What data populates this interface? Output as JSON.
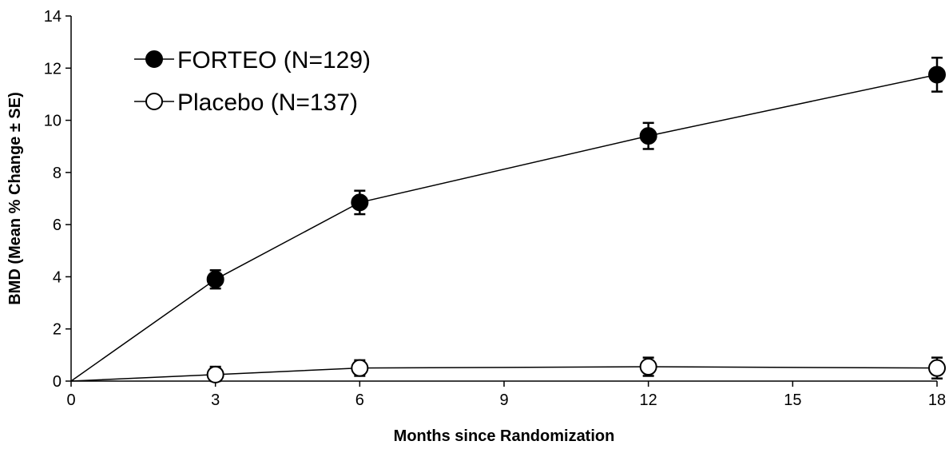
{
  "chart_data": {
    "type": "line",
    "title": "",
    "xlabel": "Months since Randomization",
    "ylabel": "BMD (Mean % Change ± SE)",
    "xlim": [
      0,
      18
    ],
    "ylim": [
      0,
      14
    ],
    "xticks": [
      0,
      3,
      6,
      9,
      12,
      15,
      18
    ],
    "yticks": [
      0,
      2,
      4,
      6,
      8,
      10,
      12,
      14
    ],
    "grid": false,
    "legend_position": "top-left",
    "series": [
      {
        "name": "FORTEO (N=129)",
        "marker": "filled-circle",
        "color": "#000000",
        "x": [
          0,
          3,
          6,
          12,
          18
        ],
        "y": [
          0,
          3.9,
          6.85,
          9.4,
          11.75
        ],
        "se": [
          0,
          0.35,
          0.45,
          0.5,
          0.65
        ]
      },
      {
        "name": "Placebo (N=137)",
        "marker": "open-circle",
        "color": "#000000",
        "x": [
          0,
          3,
          6,
          12,
          18
        ],
        "y": [
          0,
          0.25,
          0.5,
          0.55,
          0.5
        ],
        "se": [
          0,
          0.3,
          0.3,
          0.35,
          0.4
        ]
      }
    ]
  }
}
